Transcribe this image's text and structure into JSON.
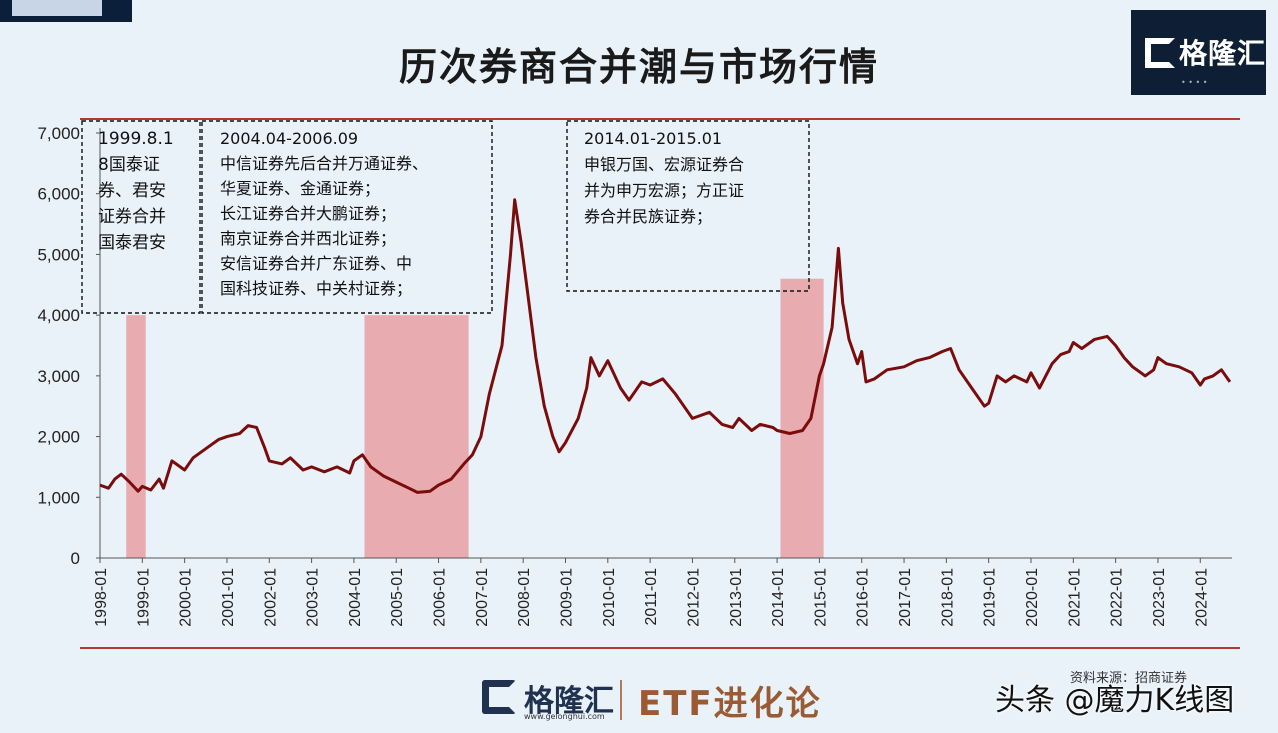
{
  "title": "历次券商合并潮与市场行情",
  "brand": {
    "name": "格隆汇",
    "url": "www.gelonghui.com",
    "footer_product": "ETF进化论"
  },
  "source": "资料来源：招商证券",
  "watermark": "头条 @魔力K线图",
  "colors": {
    "line": "#7a0c0c",
    "shade": "#e8a3a6",
    "rule": "#b23a2c",
    "background": "#e9f2f9"
  },
  "annotations": [
    {
      "lines": [
        "1999.8.1",
        "8国泰证",
        "券、君安",
        "证券合并",
        "国泰君安"
      ]
    },
    {
      "lines": [
        "2004.04-2006.09",
        "中信证券先后合并万通证券、",
        "华夏证券、金通证券；",
        "长江证券合并大鹏证券；",
        "南京证券合并西北证券；",
        "安信证券合并广东证券、中",
        "国科技证券、中关村证券；"
      ]
    },
    {
      "lines": [
        "2014.01-2015.01",
        "申银万国、宏源证券合",
        "并为申万宏源；方正证",
        "券合并民族证券；"
      ]
    }
  ],
  "chart_data": {
    "type": "line",
    "title": "历次券商合并潮与市场行情",
    "xlabel": "",
    "ylabel": "",
    "ylim": [
      0,
      7000
    ],
    "yticks": [
      "0",
      "1,000",
      "2,000",
      "3,000",
      "4,000",
      "5,000",
      "6,000",
      "7,000"
    ],
    "xticks": [
      "1998-01",
      "1999-01",
      "2000-01",
      "2001-01",
      "2002-01",
      "2003-01",
      "2004-01",
      "2005-01",
      "2006-01",
      "2007-01",
      "2008-01",
      "2009-01",
      "2010-01",
      "2011-01",
      "2012-01",
      "2013-01",
      "2014-01",
      "2015-01",
      "2016-01",
      "2017-01",
      "2018-01",
      "2019-01",
      "2020-01",
      "2021-01",
      "2022-01",
      "2023-01",
      "2024-01"
    ],
    "xlim": [
      1998.0,
      2024.75
    ],
    "grid": false,
    "series": [
      {
        "x": [
          1998.0,
          1998.2,
          1998.35,
          1998.5,
          1998.7,
          1998.9,
          1999.0,
          1999.2,
          1999.4,
          1999.5,
          1999.7,
          2000.0,
          2000.2,
          2000.5,
          2000.8,
          2001.0,
          2001.3,
          2001.5,
          2001.7,
          2001.9,
          2002.0,
          2002.3,
          2002.5,
          2002.8,
          2003.0,
          2003.3,
          2003.6,
          2003.9,
          2004.0,
          2004.2,
          2004.4,
          2004.7,
          2005.0,
          2005.3,
          2005.5,
          2005.8,
          2006.0,
          2006.3,
          2006.6,
          2006.8,
          2007.0,
          2007.2,
          2007.5,
          2007.7,
          2007.8,
          2007.95,
          2008.1,
          2008.3,
          2008.5,
          2008.7,
          2008.85,
          2009.0,
          2009.3,
          2009.5,
          2009.6,
          2009.8,
          2010.0,
          2010.3,
          2010.5,
          2010.8,
          2011.0,
          2011.3,
          2011.6,
          2011.9,
          2012.0,
          2012.4,
          2012.7,
          2012.95,
          2013.1,
          2013.4,
          2013.6,
          2013.9,
          2014.0,
          2014.3,
          2014.6,
          2014.8,
          2015.0,
          2015.1,
          2015.3,
          2015.45,
          2015.55,
          2015.7,
          2015.9,
          2016.0,
          2016.1,
          2016.3,
          2016.6,
          2017.0,
          2017.3,
          2017.6,
          2017.9,
          2018.1,
          2018.3,
          2018.6,
          2018.9,
          2019.0,
          2019.2,
          2019.4,
          2019.6,
          2019.9,
          2020.0,
          2020.2,
          2020.5,
          2020.7,
          2020.9,
          2021.0,
          2021.2,
          2021.5,
          2021.8,
          2022.0,
          2022.2,
          2022.4,
          2022.7,
          2022.9,
          2023.0,
          2023.2,
          2023.5,
          2023.8,
          2024.0,
          2024.1,
          2024.3,
          2024.5,
          2024.7
        ],
        "y": [
          1200,
          1150,
          1300,
          1380,
          1250,
          1100,
          1180,
          1120,
          1300,
          1150,
          1600,
          1450,
          1650,
          1800,
          1950,
          2000,
          2050,
          2180,
          2150,
          1800,
          1600,
          1550,
          1650,
          1450,
          1500,
          1420,
          1500,
          1400,
          1600,
          1700,
          1500,
          1350,
          1250,
          1150,
          1080,
          1100,
          1200,
          1300,
          1550,
          1700,
          2000,
          2700,
          3500,
          5000,
          5900,
          5200,
          4400,
          3300,
          2500,
          2000,
          1750,
          1900,
          2300,
          2800,
          3300,
          3000,
          3250,
          2800,
          2600,
          2900,
          2850,
          2950,
          2700,
          2400,
          2300,
          2400,
          2200,
          2150,
          2300,
          2100,
          2200,
          2150,
          2100,
          2050,
          2100,
          2300,
          3000,
          3200,
          3800,
          5100,
          4200,
          3600,
          3200,
          3400,
          2900,
          2950,
          3100,
          3150,
          3250,
          3300,
          3400,
          3450,
          3100,
          2800,
          2500,
          2550,
          3000,
          2900,
          3000,
          2900,
          3050,
          2800,
          3200,
          3350,
          3400,
          3550,
          3450,
          3600,
          3650,
          3500,
          3300,
          3150,
          3000,
          3100,
          3300,
          3200,
          3150,
          3050,
          2850,
          2950,
          3000,
          3100,
          2900
        ]
      }
    ],
    "shaded_periods": [
      {
        "start": 1998.62,
        "end": 1999.08,
        "top": 4000
      },
      {
        "start": 2004.25,
        "end": 2006.71,
        "top": 4000
      },
      {
        "start": 2014.08,
        "end": 2015.1,
        "top": 4600
      }
    ]
  }
}
